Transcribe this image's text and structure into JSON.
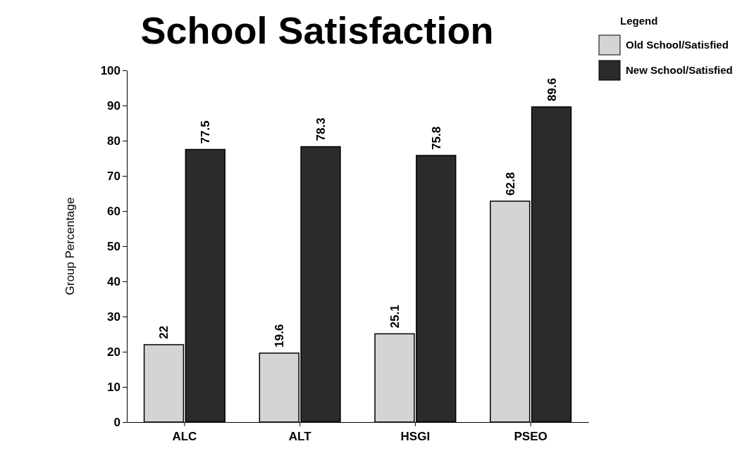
{
  "chart_data": {
    "type": "bar",
    "title": "School Satisfaction",
    "ylabel": "Group Percentage",
    "legend_title": "Legend",
    "categories": [
      "ALC",
      "ALT",
      "HSGI",
      "PSEO"
    ],
    "series": [
      {
        "name": "Old School/Satisfied",
        "color": "#d4d4d4",
        "values": [
          22,
          19.6,
          25.1,
          62.8
        ]
      },
      {
        "name": "New School/Satisfied",
        "color": "#2b2b2b",
        "values": [
          77.5,
          78.3,
          75.8,
          89.6
        ]
      }
    ],
    "ylim": [
      0,
      100
    ],
    "yticks": [
      0,
      10,
      20,
      30,
      40,
      50,
      60,
      70,
      80,
      90,
      100
    ],
    "data_labels": true,
    "legend": "top right",
    "grid": false
  }
}
